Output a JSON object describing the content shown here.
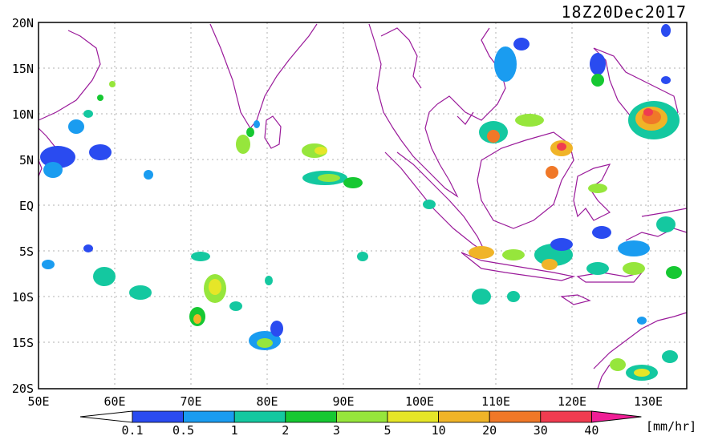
{
  "title": "18Z20Dec2017",
  "map": {
    "lat_labels": [
      "20N",
      "15N",
      "10N",
      "5N",
      "EQ",
      "5S",
      "10S",
      "15S",
      "20S"
    ],
    "lon_labels": [
      "50E",
      "60E",
      "70E",
      "80E",
      "90E",
      "100E",
      "110E",
      "120E",
      "130E"
    ]
  },
  "colorbar": {
    "ticks": [
      "0.1",
      "0.5",
      "1",
      "2",
      "3",
      "5",
      "10",
      "20",
      "30",
      "40"
    ],
    "unit": "[mm/hr]",
    "colors": [
      "#2a4bf0",
      "#1a9cf0",
      "#14c8a0",
      "#16c832",
      "#96e63c",
      "#e6e628",
      "#f0b428",
      "#f07828",
      "#f03c50",
      "#f01e96"
    ]
  }
}
